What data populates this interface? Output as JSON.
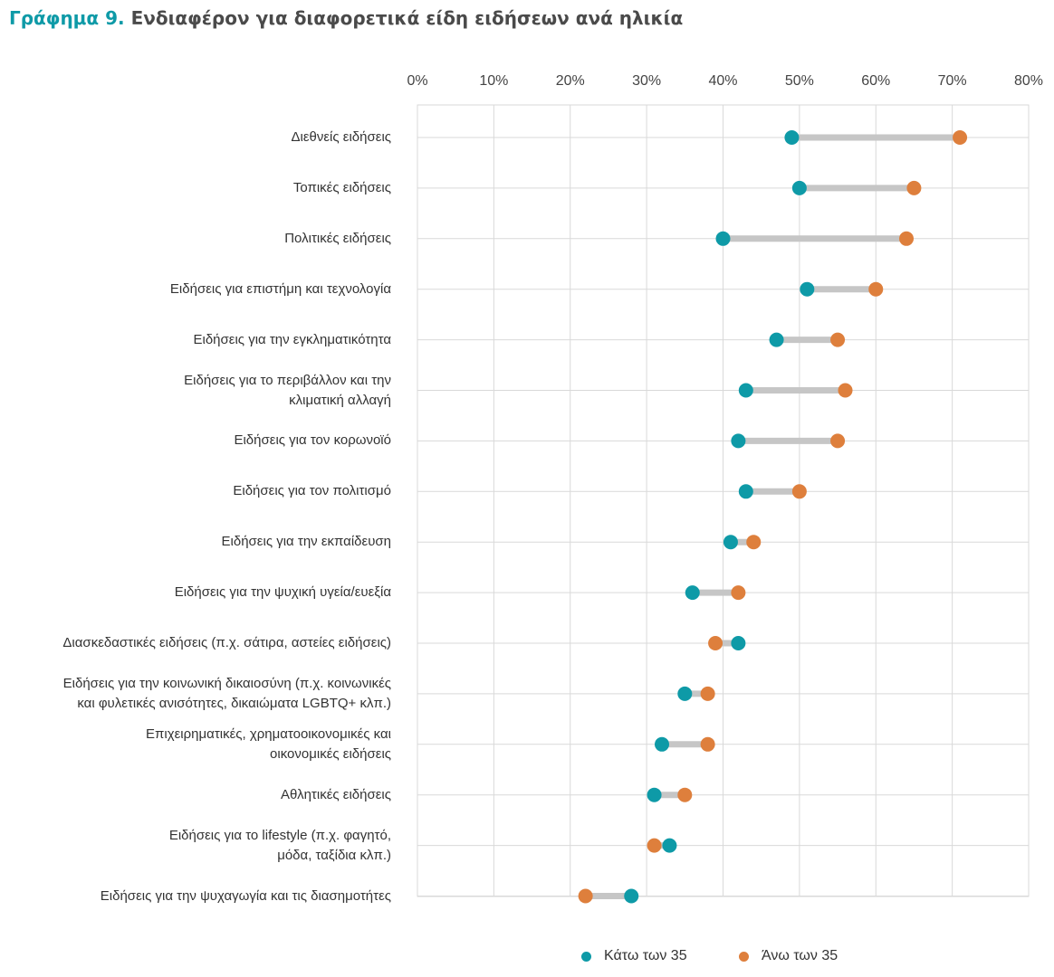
{
  "title": {
    "prefix": "Γράφημα 9.",
    "main": "Ενδιαφέρον για διαφορετικά είδη ειδήσεων ανά ηλικία"
  },
  "colors": {
    "under35": "#0e9aa7",
    "over35": "#de7f3c",
    "connector": "#c6c6c6",
    "grid": "#d9d9d9"
  },
  "chart_data": {
    "type": "dumbbell",
    "xlim": [
      0,
      80
    ],
    "x_ticks": [
      "0%",
      "10%",
      "20%",
      "30%",
      "40%",
      "50%",
      "60%",
      "70%",
      "80%"
    ],
    "grid": true,
    "legend_position": "bottom",
    "categories": [
      "Διεθνείς ειδήσεις",
      "Τοπικές ειδήσεις",
      "Πολιτικές ειδήσεις",
      "Ειδήσεις για επιστήμη και τεχνολογία",
      "Ειδήσεις για την εγκληματικότητα",
      "Ειδήσεις για το περιβάλλον και την\nκλιματική αλλαγή",
      "Ειδήσεις για τον κορωνοϊό",
      "Ειδήσεις για τον πολιτισμό",
      "Ειδήσεις για την εκπαίδευση",
      "Ειδήσεις για την ψυχική υγεία/ευεξία",
      "Διασκεδαστικές ειδήσεις (π.χ. σάτιρα, αστείες ειδήσεις)",
      "Ειδήσεις για την κοινωνική δικαιοσύνη (π.χ. κοινωνικές\nκαι φυλετικές ανισότητες, δικαιώματα LGBTQ+ κλπ.)",
      "Επιχειρηματικές, χρηματοοικονομικές και\nοικονομικές ειδήσεις",
      "Αθλητικές ειδήσεις",
      "Ειδήσεις για το lifestyle (π.χ. φαγητό,\nμόδα, ταξίδια κλπ.)",
      "Ειδήσεις για την ψυχαγωγία και τις διασημοτήτες"
    ],
    "series": [
      {
        "name": "Κάτω των 35",
        "values": [
          49,
          50,
          40,
          51,
          47,
          43,
          42,
          43,
          41,
          36,
          42,
          35,
          32,
          31,
          33,
          28
        ]
      },
      {
        "name": "Άνω των 35",
        "values": [
          71,
          65,
          64,
          60,
          55,
          56,
          55,
          50,
          44,
          42,
          39,
          38,
          38,
          35,
          31,
          22
        ]
      }
    ]
  }
}
